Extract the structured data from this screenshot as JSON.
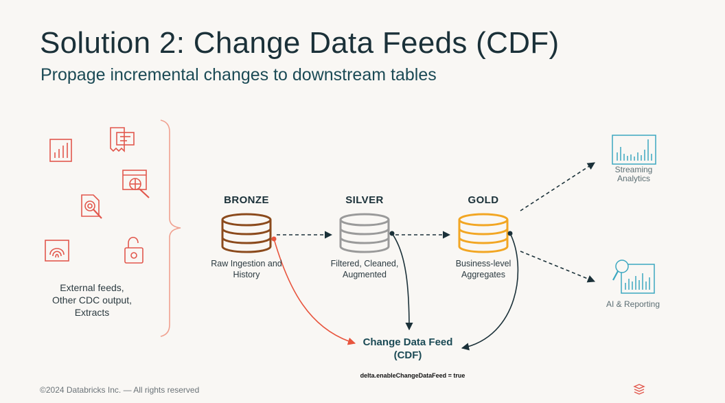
{
  "slide": {
    "title": "Solution 2: Change Data Feeds (CDF)",
    "subtitle": "Propage incremental changes to downstream tables"
  },
  "sources": {
    "label_lines": [
      "External feeds,",
      "Other CDC output,",
      "Extracts"
    ],
    "icons": [
      "bar-chart-icon",
      "receipt-icon",
      "web-search-icon",
      "document-search-icon",
      "fingerprint-icon",
      "padlock-icon"
    ]
  },
  "stages": {
    "bronze": {
      "title": "BRONZE",
      "desc_lines": [
        "Raw Ingestion and",
        "History"
      ]
    },
    "silver": {
      "title": "SILVER",
      "desc_lines": [
        "Filtered, Cleaned,",
        "Augmented"
      ]
    },
    "gold": {
      "title": "GOLD",
      "desc_lines": [
        "Business-level",
        "Aggregates"
      ]
    }
  },
  "outputs": {
    "streaming": {
      "label_lines": [
        "Streaming",
        "Analytics"
      ]
    },
    "reporting": {
      "label": "AI & Reporting"
    }
  },
  "cdf": {
    "title_lines": [
      "Change Data Feed",
      "(CDF)"
    ],
    "config": "delta.enableChangeDataFeed = true"
  },
  "colors": {
    "bronze": "#8b4a1c",
    "silver": "#9a9a9a",
    "gold": "#f2a623",
    "source_icons": "#e2574c",
    "output_icons": "#3aa7c0",
    "dark_arrow": "#1b3139",
    "red_arrow": "#e8553e"
  },
  "footer": {
    "copyright": "©2024 Databricks Inc. — All rights reserved"
  }
}
